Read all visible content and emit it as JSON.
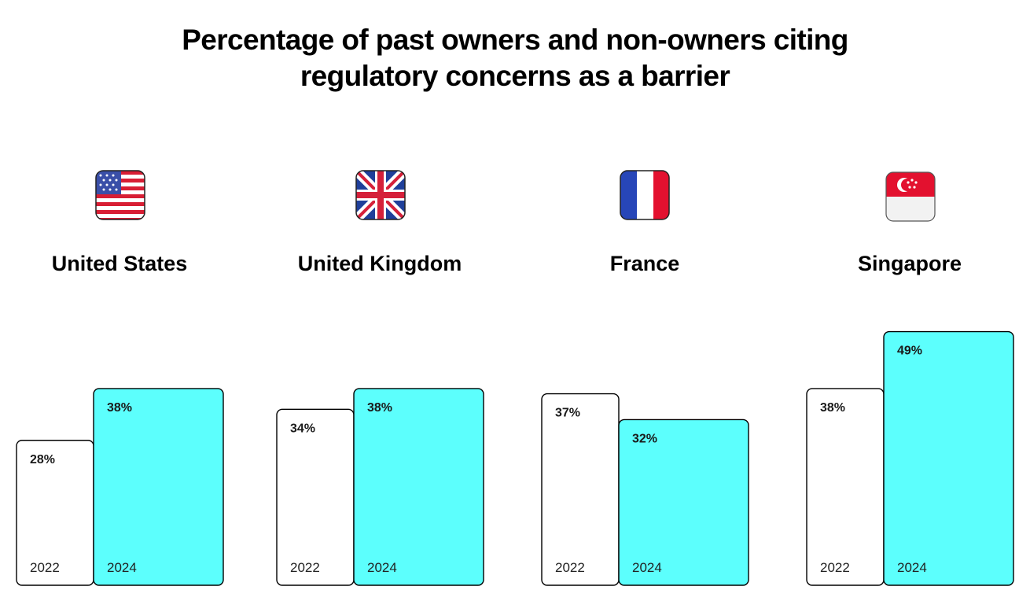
{
  "chart_data": {
    "type": "bar",
    "title_lines": [
      "Percentage of past owners and non-owners citing",
      "regulatory concerns as a barrier"
    ],
    "categories": [
      "United States",
      "United Kingdom",
      "France",
      "Singapore"
    ],
    "flag_icons": [
      "us-flag-icon",
      "uk-flag-icon",
      "france-flag-icon",
      "singapore-flag-icon"
    ],
    "series": [
      {
        "name": "2022",
        "values": [
          28,
          34,
          37,
          38
        ],
        "labels": [
          "28%",
          "34%",
          "37%",
          "38%"
        ],
        "color": "#ffffff"
      },
      {
        "name": "2024",
        "values": [
          38,
          38,
          32,
          49
        ],
        "labels": [
          "38%",
          "38%",
          "32%",
          "49%"
        ],
        "color": "#5cfffd"
      }
    ],
    "bar_stroke_color": "#000000",
    "grid": false
  }
}
